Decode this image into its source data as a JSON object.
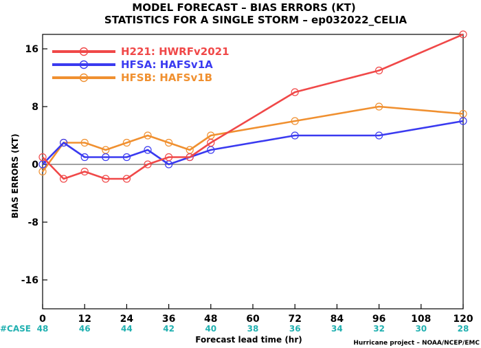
{
  "titles": {
    "line1": "MODEL FORECAST – BIAS ERRORS (KT)",
    "line2": "STATISTICS FOR A SINGLE STORM – ep032022_CELIA"
  },
  "credit": "Hurricane project – NOAA/NCEP/EMC",
  "case_row": {
    "label": "#CASE",
    "color": "#20b0b0",
    "x": [
      0,
      12,
      24,
      36,
      48,
      60,
      72,
      84,
      96,
      108,
      120
    ],
    "values": [
      "48",
      "46",
      "44",
      "42",
      "40",
      "38",
      "36",
      "34",
      "32",
      "30",
      "28"
    ]
  },
  "chart_data": {
    "type": "line",
    "title": "MODEL FORECAST – BIAS ERRORS (KT)",
    "subtitle": "STATISTICS FOR A SINGLE STORM – ep032022_CELIA",
    "xlabel": "Forecast lead time (hr)",
    "ylabel": "BIAS ERRORS (KT)",
    "xlim": [
      0,
      120
    ],
    "ylim": [
      -20,
      18
    ],
    "xticks": [
      0,
      12,
      24,
      36,
      48,
      60,
      72,
      84,
      96,
      108,
      120
    ],
    "yticks": [
      -16,
      -8,
      0,
      8,
      16
    ],
    "zero_line": true,
    "grid": false,
    "legend_position": "top-left",
    "series": [
      {
        "name": "H221: HWRFv2021",
        "color": "#f04848",
        "x": [
          0,
          6,
          12,
          18,
          24,
          30,
          36,
          42,
          48,
          72,
          96,
          120
        ],
        "y": [
          1,
          -2,
          -1,
          -2,
          -2,
          0,
          1,
          1,
          3,
          10,
          13,
          18
        ]
      },
      {
        "name": "HFSA: HAFSv1A",
        "color": "#3a3af0",
        "x": [
          0,
          6,
          12,
          18,
          24,
          30,
          36,
          42,
          48,
          72,
          96,
          120
        ],
        "y": [
          0,
          3,
          1,
          1,
          1,
          2,
          0,
          1,
          2,
          4,
          4,
          6
        ]
      },
      {
        "name": "HFSB: HAFSv1B",
        "color": "#f09030",
        "x": [
          0,
          6,
          12,
          18,
          24,
          30,
          36,
          42,
          48,
          72,
          96,
          120
        ],
        "y": [
          -1,
          3,
          3,
          2,
          3,
          4,
          3,
          2,
          4,
          6,
          8,
          7
        ]
      }
    ]
  }
}
